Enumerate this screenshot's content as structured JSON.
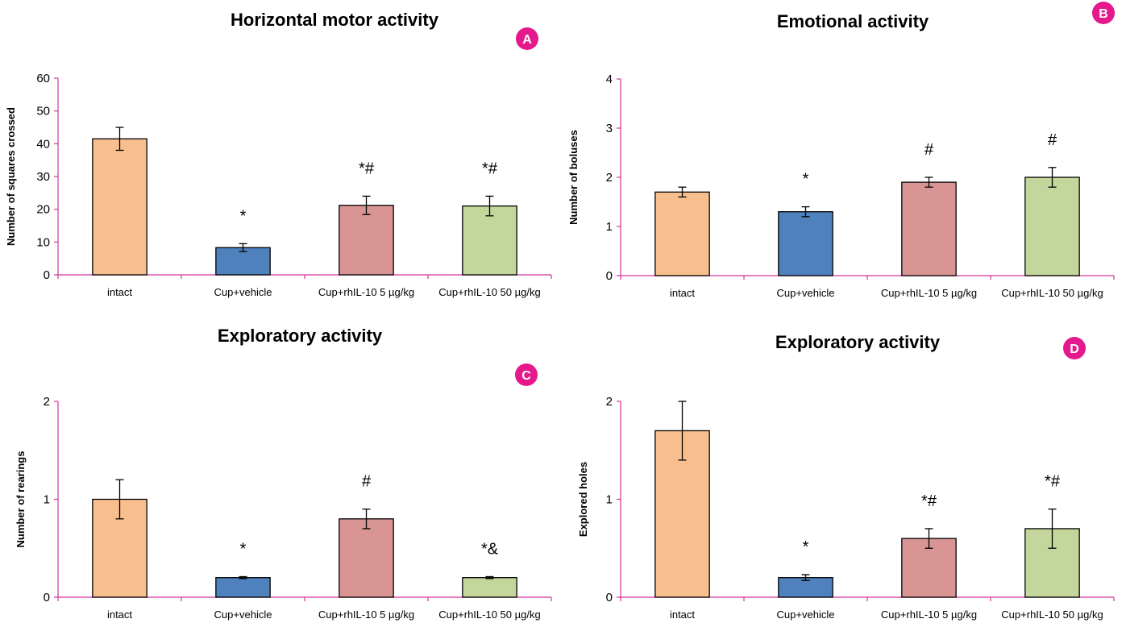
{
  "colors": {
    "axis": "#d6339b",
    "badge": "#e5188c",
    "bar_fills": [
      "#f8be8e",
      "#4f81bd",
      "#d99594",
      "#c3d69b"
    ]
  },
  "chart_data": [
    {
      "type": "bar",
      "badge": "A",
      "title": "Horizontal motor activity",
      "xlabel": "",
      "ylabel": "Number of squares crossed",
      "ylim": [
        0,
        60
      ],
      "yticks": [
        0,
        10,
        20,
        30,
        40,
        50,
        60
      ],
      "categories": [
        "intact",
        "Cup+vehicle",
        "Cup+rhIL-10 5 µg/kg",
        "Cup+rhIL-10 50 µg/kg"
      ],
      "values": [
        41.5,
        8.3,
        21.2,
        21
      ],
      "errors": [
        3.5,
        1.2,
        2.8,
        3
      ],
      "annotations": [
        "",
        "*",
        "*#",
        "*#"
      ],
      "grid": false,
      "legend": "none"
    },
    {
      "type": "bar",
      "badge": "B",
      "title": "Emotional activity",
      "xlabel": "",
      "ylabel": "Number of boluses",
      "ylim": [
        0,
        4
      ],
      "yticks": [
        0,
        1,
        2,
        3,
        4
      ],
      "categories": [
        "intact",
        "Cup+vehicle",
        "Cup+rhIL-10 5 µg/kg",
        "Cup+rhIL-10 50 µg/kg"
      ],
      "values": [
        1.7,
        1.3,
        1.9,
        2
      ],
      "errors": [
        0.1,
        0.1,
        0.1,
        0.2
      ],
      "annotations": [
        "",
        "*",
        "#",
        "#"
      ],
      "grid": false,
      "legend": "none"
    },
    {
      "type": "bar",
      "badge": "C",
      "title": "Exploratory activity",
      "xlabel": "",
      "ylabel": "Number of rearings",
      "ylim": [
        0,
        2
      ],
      "yticks": [
        0,
        1,
        2
      ],
      "categories": [
        "intact",
        "Cup+vehicle",
        "Cup+rhIL-10 5 µg/kg",
        "Cup+rhIL-10 50 µg/kg"
      ],
      "values": [
        1,
        0.2,
        0.8,
        0.2
      ],
      "errors": [
        0.2,
        0.01,
        0.1,
        0.01
      ],
      "annotations": [
        "",
        "*",
        "#",
        "*&"
      ],
      "grid": false,
      "legend": "none"
    },
    {
      "type": "bar",
      "badge": "D",
      "title": "Exploratory activity",
      "xlabel": "",
      "ylabel": "Explored holes",
      "ylim": [
        0,
        2
      ],
      "yticks": [
        0,
        1,
        2
      ],
      "categories": [
        "intact",
        "Cup+vehicle",
        "Cup+rhIL-10 5 µg/kg",
        "Cup+rhIL-10 50 µg/kg"
      ],
      "values": [
        1.7,
        0.2,
        0.6,
        0.7
      ],
      "errors": [
        0.3,
        0.03,
        0.1,
        0.2
      ],
      "annotations": [
        "",
        "*",
        "*#",
        "*#"
      ],
      "grid": false,
      "legend": "none"
    }
  ]
}
